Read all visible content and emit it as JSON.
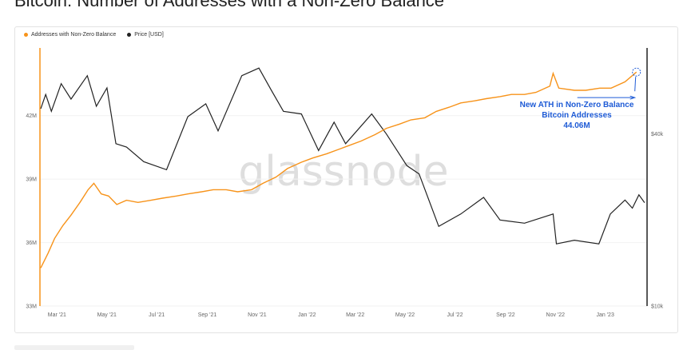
{
  "title": "Bitcoin: Number of Addresses with a Non-Zero Balance",
  "watermark": "glassnode",
  "colors": {
    "addresses": "#f7931a",
    "price": "#222222",
    "annotation": "#1e5bd6"
  },
  "chart_data": {
    "type": "line",
    "legend": [
      "Addresses with Non-Zero Balance",
      "Price [USD]"
    ],
    "x_tick_labels": [
      "Mar '21",
      "May '21",
      "Jul '21",
      "Sep '21",
      "Nov '21",
      "Jan '22",
      "Mar '22",
      "May '22",
      "Jul '22",
      "Sep '22",
      "Nov '22",
      "Jan '23"
    ],
    "y_left_ticks": [
      "33M",
      "36M",
      "39M",
      "42M"
    ],
    "y_left_values": [
      33,
      36,
      39,
      42
    ],
    "y_left_range": [
      33,
      45.2
    ],
    "y_right_ticks": [
      "$10k",
      "$40k"
    ],
    "y_right_scale": "log",
    "y_right_range": [
      10000,
      80000
    ],
    "x_range": [
      "2021-02-15",
      "2023-02-28"
    ],
    "annotation": [
      "New ATH in Non-Zero Balance",
      "Bitcoin Addresses",
      "44.06M"
    ],
    "series": [
      {
        "name": "Addresses with Non-Zero Balance",
        "axis": "left",
        "points": [
          [
            "2021-02-16",
            34.8
          ],
          [
            "2021-02-25",
            35.5
          ],
          [
            "2021-03-05",
            36.2
          ],
          [
            "2021-03-15",
            36.8
          ],
          [
            "2021-03-25",
            37.3
          ],
          [
            "2021-04-05",
            37.9
          ],
          [
            "2021-04-15",
            38.5
          ],
          [
            "2021-04-22",
            38.8
          ],
          [
            "2021-05-01",
            38.3
          ],
          [
            "2021-05-10",
            38.2
          ],
          [
            "2021-05-20",
            37.8
          ],
          [
            "2021-06-01",
            38.0
          ],
          [
            "2021-06-15",
            37.9
          ],
          [
            "2021-07-01",
            38.0
          ],
          [
            "2021-07-15",
            38.1
          ],
          [
            "2021-08-01",
            38.2
          ],
          [
            "2021-08-15",
            38.3
          ],
          [
            "2021-09-01",
            38.4
          ],
          [
            "2021-09-15",
            38.5
          ],
          [
            "2021-10-01",
            38.5
          ],
          [
            "2021-10-15",
            38.4
          ],
          [
            "2021-11-01",
            38.5
          ],
          [
            "2021-11-15",
            38.8
          ],
          [
            "2021-12-01",
            39.1
          ],
          [
            "2021-12-15",
            39.5
          ],
          [
            "2022-01-01",
            39.8
          ],
          [
            "2022-01-15",
            40.0
          ],
          [
            "2022-02-01",
            40.2
          ],
          [
            "2022-02-15",
            40.4
          ],
          [
            "2022-03-01",
            40.6
          ],
          [
            "2022-03-15",
            40.8
          ],
          [
            "2022-04-01",
            41.1
          ],
          [
            "2022-04-15",
            41.4
          ],
          [
            "2022-05-01",
            41.6
          ],
          [
            "2022-05-15",
            41.8
          ],
          [
            "2022-06-01",
            41.9
          ],
          [
            "2022-06-15",
            42.2
          ],
          [
            "2022-07-01",
            42.4
          ],
          [
            "2022-07-15",
            42.6
          ],
          [
            "2022-08-01",
            42.7
          ],
          [
            "2022-08-15",
            42.8
          ],
          [
            "2022-09-01",
            42.9
          ],
          [
            "2022-09-15",
            43.0
          ],
          [
            "2022-10-01",
            43.0
          ],
          [
            "2022-10-15",
            43.1
          ],
          [
            "2022-11-01",
            43.4
          ],
          [
            "2022-11-05",
            44.0
          ],
          [
            "2022-11-12",
            43.3
          ],
          [
            "2022-12-01",
            43.2
          ],
          [
            "2022-12-15",
            43.2
          ],
          [
            "2023-01-01",
            43.3
          ],
          [
            "2023-01-15",
            43.3
          ],
          [
            "2023-02-01",
            43.6
          ],
          [
            "2023-02-15",
            44.06
          ]
        ]
      },
      {
        "name": "Price [USD]",
        "axis": "right",
        "points": [
          [
            "2021-02-16",
            49000
          ],
          [
            "2021-02-22",
            55000
          ],
          [
            "2021-03-01",
            48000
          ],
          [
            "2021-03-13",
            60000
          ],
          [
            "2021-03-25",
            53000
          ],
          [
            "2021-04-14",
            64000
          ],
          [
            "2021-04-25",
            50000
          ],
          [
            "2021-05-08",
            58000
          ],
          [
            "2021-05-19",
            37000
          ],
          [
            "2021-06-01",
            36000
          ],
          [
            "2021-06-22",
            32000
          ],
          [
            "2021-07-20",
            30000
          ],
          [
            "2021-08-15",
            46000
          ],
          [
            "2021-09-06",
            51000
          ],
          [
            "2021-09-21",
            41000
          ],
          [
            "2021-10-20",
            64000
          ],
          [
            "2021-11-10",
            68000
          ],
          [
            "2021-11-25",
            57000
          ],
          [
            "2021-12-10",
            48000
          ],
          [
            "2022-01-01",
            47000
          ],
          [
            "2022-01-22",
            35000
          ],
          [
            "2022-02-10",
            44000
          ],
          [
            "2022-02-24",
            37000
          ],
          [
            "2022-03-28",
            47000
          ],
          [
            "2022-04-15",
            40000
          ],
          [
            "2022-05-10",
            31000
          ],
          [
            "2022-05-25",
            29000
          ],
          [
            "2022-06-18",
            19000
          ],
          [
            "2022-07-15",
            21000
          ],
          [
            "2022-08-12",
            24000
          ],
          [
            "2022-09-01",
            20000
          ],
          [
            "2022-10-01",
            19500
          ],
          [
            "2022-11-05",
            21000
          ],
          [
            "2022-11-09",
            16500
          ],
          [
            "2022-12-01",
            17000
          ],
          [
            "2022-12-31",
            16500
          ],
          [
            "2023-01-14",
            21000
          ],
          [
            "2023-02-01",
            23500
          ],
          [
            "2023-02-10",
            22000
          ],
          [
            "2023-02-18",
            24500
          ],
          [
            "2023-02-25",
            23000
          ]
        ]
      }
    ]
  }
}
